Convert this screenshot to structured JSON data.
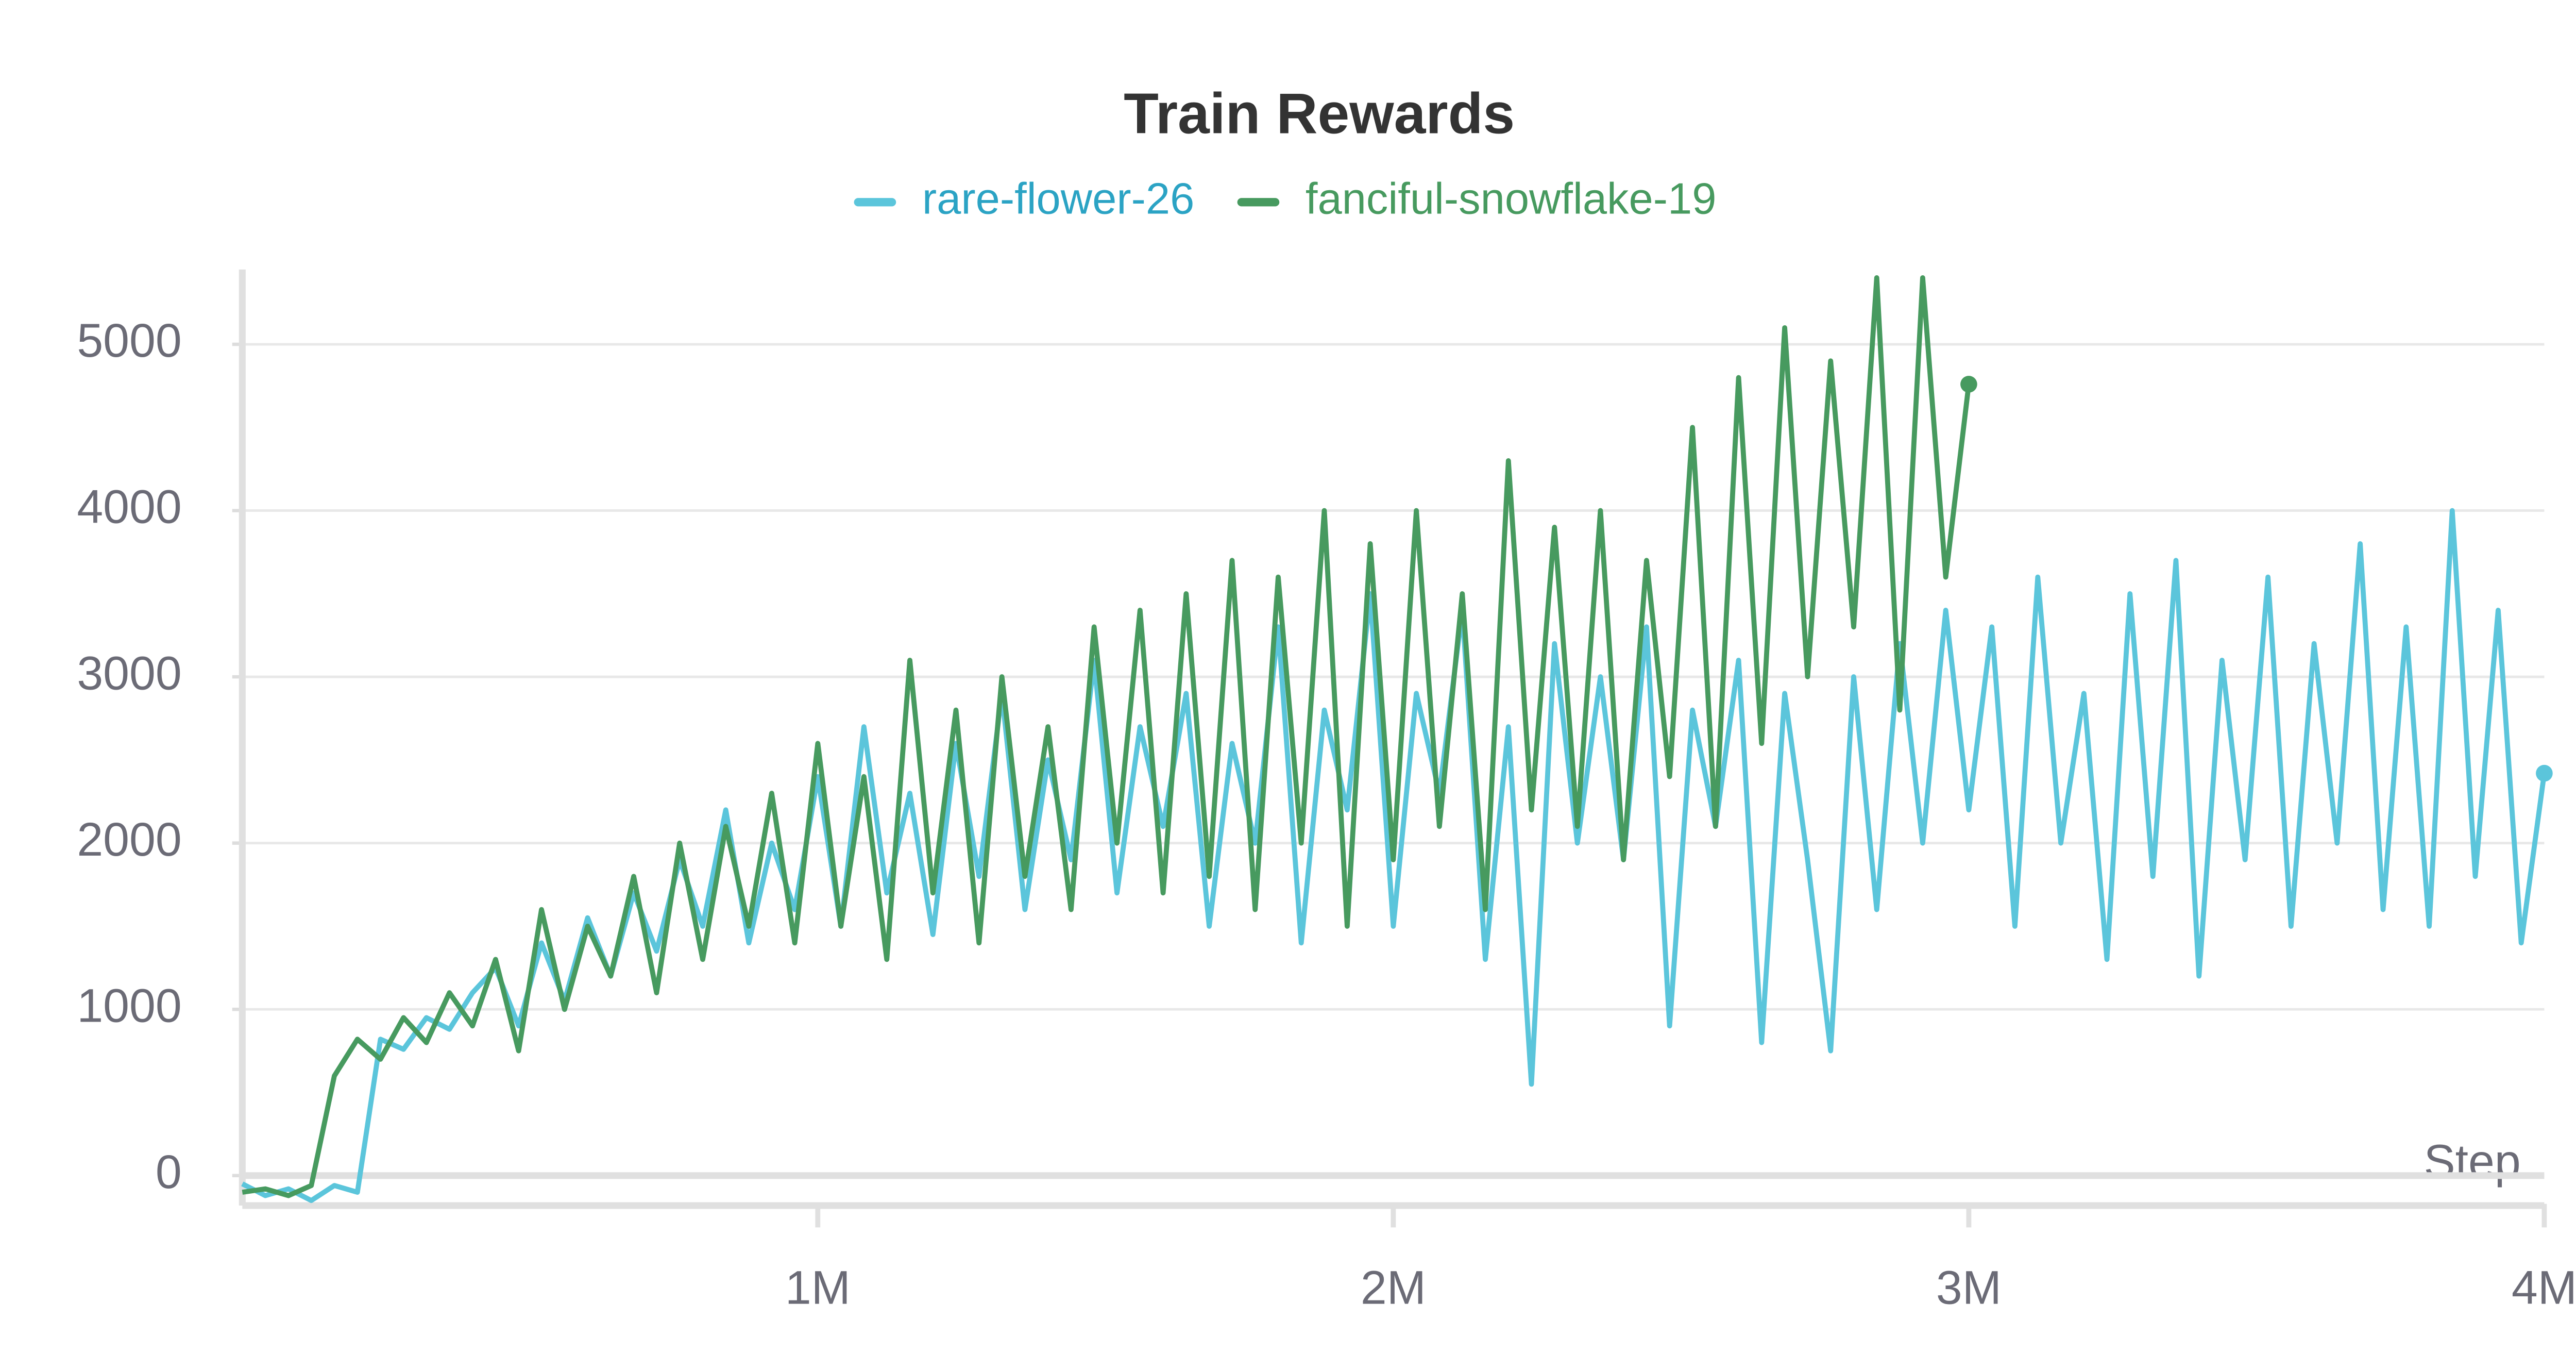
{
  "chart_data": {
    "type": "line",
    "title": "Train Rewards",
    "xlabel": "Step",
    "xlim": [
      0,
      4000000
    ],
    "ylim": [
      -170,
      5450
    ],
    "xticks": [
      {
        "value": 1000000,
        "label": "1M"
      },
      {
        "value": 2000000,
        "label": "2M"
      },
      {
        "value": 3000000,
        "label": "3M"
      },
      {
        "value": 4000000,
        "label": "4M"
      }
    ],
    "yticks": [
      0,
      1000,
      2000,
      3000,
      4000,
      5000
    ],
    "grid": true,
    "series": [
      {
        "name": "rare-flower-26",
        "color": "#5bc5db",
        "x": [
          0,
          40000,
          80000,
          120000,
          160000,
          200000,
          240000,
          280000,
          320000,
          360000,
          400000,
          440000,
          480000,
          520000,
          560000,
          600000,
          640000,
          680000,
          720000,
          760000,
          800000,
          840000,
          880000,
          920000,
          960000,
          1000000,
          1040000,
          1080000,
          1120000,
          1160000,
          1200000,
          1240000,
          1280000,
          1320000,
          1360000,
          1400000,
          1440000,
          1480000,
          1520000,
          1560000,
          1600000,
          1640000,
          1680000,
          1720000,
          1760000,
          1800000,
          1840000,
          1880000,
          1920000,
          1960000,
          2000000,
          2040000,
          2080000,
          2120000,
          2160000,
          2200000,
          2240000,
          2280000,
          2320000,
          2360000,
          2400000,
          2440000,
          2480000,
          2520000,
          2560000,
          2600000,
          2640000,
          2680000,
          2720000,
          2760000,
          2800000,
          2840000,
          2880000,
          2920000,
          2960000,
          3000000,
          3040000,
          3080000,
          3120000,
          3160000,
          3200000,
          3240000,
          3280000,
          3320000,
          3360000,
          3400000,
          3440000,
          3480000,
          3520000,
          3560000,
          3600000,
          3640000,
          3680000,
          3720000,
          3760000,
          3800000,
          3840000,
          3880000,
          3920000,
          3960000,
          4000000
        ],
        "values": [
          -50,
          -120,
          -80,
          -150,
          -60,
          -100,
          820,
          760,
          950,
          880,
          1100,
          1250,
          900,
          1400,
          1050,
          1550,
          1200,
          1700,
          1350,
          1900,
          1500,
          2200,
          1400,
          2000,
          1600,
          2400,
          1500,
          2700,
          1700,
          2300,
          1450,
          2600,
          1800,
          2900,
          1600,
          2500,
          1900,
          3100,
          1700,
          2700,
          2100,
          2900,
          1500,
          2600,
          2000,
          3300,
          1400,
          2800,
          2200,
          3500,
          1500,
          2900,
          2300,
          3400,
          1300,
          2700,
          550,
          3200,
          2000,
          3000,
          1900,
          3300,
          900,
          2800,
          2100,
          3100,
          800,
          2900,
          1900,
          750,
          3000,
          1600,
          3200,
          2000,
          3400,
          2200,
          3300,
          1500,
          3600,
          2000,
          2900,
          1300,
          3500,
          1800,
          3700,
          1200,
          3100,
          1900,
          3600,
          1500,
          3200,
          2000,
          3800,
          1600,
          3300,
          1500,
          4000,
          1800,
          3400,
          1400,
          2420
        ]
      },
      {
        "name": "fanciful-snowflake-19",
        "color": "#479a5f",
        "x": [
          0,
          40000,
          80000,
          120000,
          160000,
          200000,
          240000,
          280000,
          320000,
          360000,
          400000,
          440000,
          480000,
          520000,
          560000,
          600000,
          640000,
          680000,
          720000,
          760000,
          800000,
          840000,
          880000,
          920000,
          960000,
          1000000,
          1040000,
          1080000,
          1120000,
          1160000,
          1200000,
          1240000,
          1280000,
          1320000,
          1360000,
          1400000,
          1440000,
          1480000,
          1520000,
          1560000,
          1600000,
          1640000,
          1680000,
          1720000,
          1760000,
          1800000,
          1840000,
          1880000,
          1920000,
          1960000,
          2000000,
          2040000,
          2080000,
          2120000,
          2160000,
          2200000,
          2240000,
          2280000,
          2320000,
          2360000,
          2400000,
          2440000,
          2480000,
          2520000,
          2560000,
          2600000,
          2640000,
          2680000,
          2720000,
          2760000,
          2800000,
          2840000,
          2880000,
          2920000,
          2960000,
          3000000
        ],
        "values": [
          -100,
          -80,
          -120,
          -60,
          600,
          820,
          700,
          950,
          800,
          1100,
          900,
          1300,
          750,
          1600,
          1000,
          1500,
          1200,
          1800,
          1100,
          2000,
          1300,
          2100,
          1500,
          2300,
          1400,
          2600,
          1500,
          2400,
          1300,
          3100,
          1700,
          2800,
          1400,
          3000,
          1800,
          2700,
          1600,
          3300,
          2000,
          3400,
          1700,
          3500,
          1800,
          3700,
          1600,
          3600,
          2000,
          4000,
          1500,
          3800,
          1900,
          4000,
          2100,
          3500,
          1600,
          4300,
          2200,
          3900,
          2100,
          4000,
          1900,
          3700,
          2400,
          4500,
          2100,
          4800,
          2600,
          5100,
          3000,
          4900,
          3300,
          5400,
          2800,
          5400,
          3600,
          4760
        ]
      }
    ]
  }
}
